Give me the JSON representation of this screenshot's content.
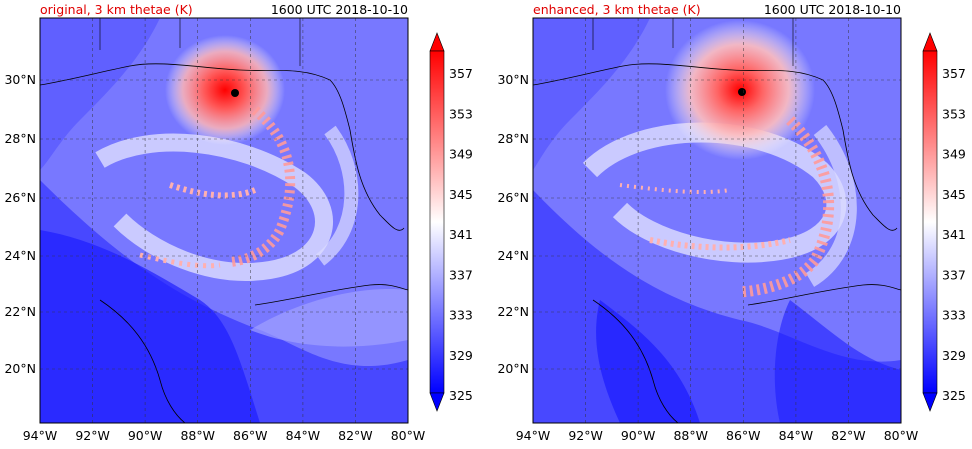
{
  "chart_data": [
    {
      "type": "heatmap",
      "title": "original, 3 km thetae (K)",
      "time_label": "1600 UTC 2018-10-10",
      "x_ticks": [
        "94°W",
        "92°W",
        "90°W",
        "88°W",
        "86°W",
        "84°W",
        "82°W",
        "80°W"
      ],
      "y_ticks": [
        "20°N",
        "22°N",
        "24°N",
        "26°N",
        "28°N",
        "30°N"
      ],
      "xlim": [
        -94,
        -80
      ],
      "ylim": [
        18.2,
        32.0
      ],
      "grid": true,
      "storm_center": {
        "lon": -86.6,
        "lat": 29.5
      },
      "colorbar": {
        "ticks": [
          "325",
          "329",
          "333",
          "337",
          "341",
          "345",
          "349",
          "353",
          "357"
        ],
        "range": [
          325,
          359
        ],
        "extend": "both"
      }
    },
    {
      "type": "heatmap",
      "title": "enhanced, 3 km thetae (K)",
      "time_label": "1600 UTC 2018-10-10",
      "x_ticks": [
        "94°W",
        "92°W",
        "90°W",
        "88°W",
        "86°W",
        "84°W",
        "82°W",
        "80°W"
      ],
      "y_ticks": [
        "20°N",
        "22°N",
        "24°N",
        "26°N",
        "28°N",
        "30°N"
      ],
      "xlim": [
        -94,
        -80
      ],
      "ylim": [
        18.2,
        32.0
      ],
      "grid": true,
      "storm_center": {
        "lon": -86.0,
        "lat": 29.6
      },
      "colorbar": {
        "ticks": [
          "325",
          "329",
          "333",
          "337",
          "341",
          "345",
          "349",
          "353",
          "357"
        ],
        "range": [
          325,
          359
        ],
        "extend": "both"
      }
    }
  ],
  "colors": {
    "title_red": "#e00000",
    "cold": "#0000ff",
    "neutral": "#ffffff",
    "warm": "#ff0000",
    "storm_eye": "#000000"
  }
}
